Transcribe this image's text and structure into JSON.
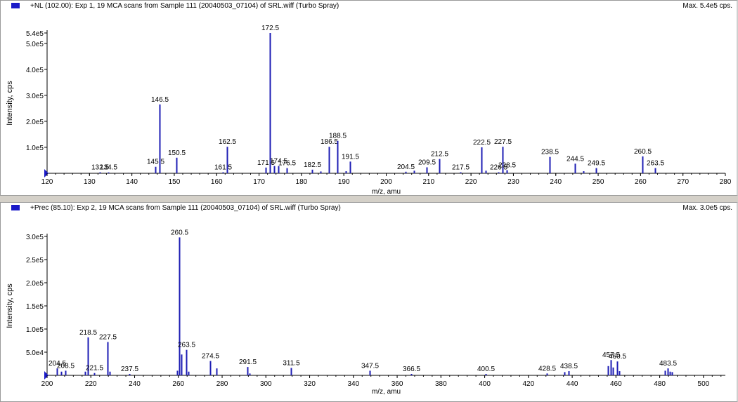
{
  "panels": [
    {
      "title": "+NL (102.00): Exp 1, 19 MCA scans from Sample 111 (20040503_07104) of SRL.wiff (Turbo Spray)",
      "max_label": "Max. 5.4e5 cps."
    },
    {
      "title": "+Prec (85.10): Exp 2, 19 MCA scans from Sample 111 (20040503_07104) of SRL.wiff (Turbo Spray)",
      "max_label": "Max. 3.0e5 cps."
    }
  ],
  "colors": {
    "bar": "#1e1eb4",
    "marker": "#1a1ac8",
    "axis": "#000000"
  },
  "chart_data": [
    {
      "type": "bar",
      "title": "+NL (102.00): Exp 1, 19 MCA scans from Sample 111 (20040503_07104) of SRL.wiff (Turbo Spray)",
      "xlabel": "m/z, amu",
      "ylabel": "Intensity, cps",
      "xlim": [
        120,
        280
      ],
      "ylim": [
        0,
        540000
      ],
      "xticks": [
        {
          "v": 120,
          "t": "120"
        },
        {
          "v": 130,
          "t": "130"
        },
        {
          "v": 140,
          "t": "140"
        },
        {
          "v": 150,
          "t": "150"
        },
        {
          "v": 160,
          "t": "160"
        },
        {
          "v": 170,
          "t": "170"
        },
        {
          "v": 180,
          "t": "180"
        },
        {
          "v": 190,
          "t": "190"
        },
        {
          "v": 200,
          "t": "200"
        },
        {
          "v": 210,
          "t": "210"
        },
        {
          "v": 220,
          "t": "220"
        },
        {
          "v": 230,
          "t": "230"
        },
        {
          "v": 240,
          "t": "240"
        },
        {
          "v": 250,
          "t": "250"
        },
        {
          "v": 260,
          "t": "260"
        },
        {
          "v": 270,
          "t": "270"
        },
        {
          "v": 280,
          "t": "280"
        }
      ],
      "yticks": [
        {
          "v": 100000,
          "t": "1.0e5"
        },
        {
          "v": 200000,
          "t": "2.0e5"
        },
        {
          "v": 300000,
          "t": "3.0e5"
        },
        {
          "v": 400000,
          "t": "4.0e5"
        },
        {
          "v": 500000,
          "t": "5.0e5"
        },
        {
          "v": 540000,
          "t": "5.4e5"
        }
      ],
      "peaks": [
        {
          "x": 132.5,
          "y": 4000,
          "label": "132.5"
        },
        {
          "x": 134.5,
          "y": 3500,
          "label": "134.5"
        },
        {
          "x": 145.5,
          "y": 25000,
          "label": "145.5"
        },
        {
          "x": 146.5,
          "y": 265000,
          "label": "146.5"
        },
        {
          "x": 150.5,
          "y": 60000,
          "label": "150.5"
        },
        {
          "x": 161.5,
          "y": 4000,
          "label": "161.5"
        },
        {
          "x": 162.5,
          "y": 102000,
          "label": "162.5"
        },
        {
          "x": 171.5,
          "y": 22000,
          "label": "171.5"
        },
        {
          "x": 172.5,
          "y": 540000,
          "label": "172.5"
        },
        {
          "x": 173.5,
          "y": 28000
        },
        {
          "x": 174.5,
          "y": 28000,
          "label": "174.5"
        },
        {
          "x": 176.5,
          "y": 20000,
          "label": "176.5"
        },
        {
          "x": 182.5,
          "y": 14000,
          "label": "182.5"
        },
        {
          "x": 184.5,
          "y": 7000
        },
        {
          "x": 186.5,
          "y": 102000,
          "label": "186.5"
        },
        {
          "x": 188.5,
          "y": 125000,
          "label": "188.5"
        },
        {
          "x": 190.5,
          "y": 8000
        },
        {
          "x": 191.5,
          "y": 45000,
          "label": "191.5"
        },
        {
          "x": 204.5,
          "y": 6000,
          "label": "204.5"
        },
        {
          "x": 206.5,
          "y": 10000
        },
        {
          "x": 209.5,
          "y": 23000,
          "label": "209.5"
        },
        {
          "x": 212.5,
          "y": 55000,
          "label": "212.5"
        },
        {
          "x": 217.5,
          "y": 4000,
          "label": "217.5"
        },
        {
          "x": 222.5,
          "y": 100000,
          "label": "222.5"
        },
        {
          "x": 223.5,
          "y": 10000
        },
        {
          "x": 226.5,
          "y": 4000,
          "label": "226.5"
        },
        {
          "x": 227.5,
          "y": 102000,
          "label": "227.5"
        },
        {
          "x": 228.5,
          "y": 12000,
          "label": "228.5"
        },
        {
          "x": 238.5,
          "y": 63000,
          "label": "238.5"
        },
        {
          "x": 244.5,
          "y": 37000,
          "label": "244.5"
        },
        {
          "x": 246.5,
          "y": 8000
        },
        {
          "x": 249.5,
          "y": 20000,
          "label": "249.5"
        },
        {
          "x": 260.5,
          "y": 65000,
          "label": "260.5"
        },
        {
          "x": 263.5,
          "y": 20000,
          "label": "263.5"
        }
      ]
    },
    {
      "type": "bar",
      "title": "+Prec (85.10): Exp 2, 19 MCA scans from Sample 111 (20040503_07104) of SRL.wiff (Turbo Spray)",
      "xlabel": "m/z, amu",
      "ylabel": "Intensity, cps",
      "xlim": [
        200,
        510
      ],
      "ylim": [
        0,
        300000
      ],
      "xticks": [
        {
          "v": 200,
          "t": "200"
        },
        {
          "v": 220,
          "t": "220"
        },
        {
          "v": 240,
          "t": "240"
        },
        {
          "v": 260,
          "t": "260"
        },
        {
          "v": 280,
          "t": "280"
        },
        {
          "v": 300,
          "t": "300"
        },
        {
          "v": 320,
          "t": "320"
        },
        {
          "v": 340,
          "t": "340"
        },
        {
          "v": 360,
          "t": "360"
        },
        {
          "v": 380,
          "t": "380"
        },
        {
          "v": 400,
          "t": "400"
        },
        {
          "v": 420,
          "t": "420"
        },
        {
          "v": 440,
          "t": "440"
        },
        {
          "v": 460,
          "t": "460"
        },
        {
          "v": 480,
          "t": "480"
        },
        {
          "v": 500,
          "t": "500"
        }
      ],
      "yticks": [
        {
          "v": 50000,
          "t": "5.0e4"
        },
        {
          "v": 100000,
          "t": "1.0e5"
        },
        {
          "v": 150000,
          "t": "1.5e5"
        },
        {
          "v": 200000,
          "t": "2.0e5"
        },
        {
          "v": 250000,
          "t": "2.5e5"
        },
        {
          "v": 300000,
          "t": "3.0e5"
        }
      ],
      "peaks": [
        {
          "x": 204.5,
          "y": 15000,
          "label": "204.5"
        },
        {
          "x": 206.5,
          "y": 8000
        },
        {
          "x": 208.5,
          "y": 10000,
          "label": "208.5"
        },
        {
          "x": 217.5,
          "y": 8000
        },
        {
          "x": 218.5,
          "y": 82000,
          "label": "218.5"
        },
        {
          "x": 221.5,
          "y": 5000,
          "label": "221.5"
        },
        {
          "x": 227.5,
          "y": 72000,
          "label": "227.5"
        },
        {
          "x": 228.5,
          "y": 8000
        },
        {
          "x": 237.5,
          "y": 3000,
          "label": "237.5"
        },
        {
          "x": 259.5,
          "y": 10000
        },
        {
          "x": 260.5,
          "y": 298000,
          "label": "260.5"
        },
        {
          "x": 261.5,
          "y": 45000
        },
        {
          "x": 263.5,
          "y": 55000,
          "label": "263.5"
        },
        {
          "x": 264.5,
          "y": 8000
        },
        {
          "x": 274.5,
          "y": 31000,
          "label": "274.5"
        },
        {
          "x": 277.5,
          "y": 15000
        },
        {
          "x": 291.5,
          "y": 18000,
          "label": "291.5"
        },
        {
          "x": 292.5,
          "y": 4000
        },
        {
          "x": 311.5,
          "y": 16000,
          "label": "311.5"
        },
        {
          "x": 347.5,
          "y": 10000,
          "label": "347.5"
        },
        {
          "x": 366.5,
          "y": 3000,
          "label": "366.5"
        },
        {
          "x": 400.5,
          "y": 3000,
          "label": "400.5"
        },
        {
          "x": 428.5,
          "y": 4000,
          "label": "428.5"
        },
        {
          "x": 436.5,
          "y": 7000
        },
        {
          "x": 438.5,
          "y": 9000,
          "label": "438.5"
        },
        {
          "x": 456.5,
          "y": 20000
        },
        {
          "x": 457.5,
          "y": 33000,
          "label": "457.5"
        },
        {
          "x": 458.5,
          "y": 17000
        },
        {
          "x": 460.5,
          "y": 30000,
          "label": "460.5"
        },
        {
          "x": 461.5,
          "y": 9000
        },
        {
          "x": 482.5,
          "y": 10000
        },
        {
          "x": 483.5,
          "y": 15000,
          "label": "483.5"
        },
        {
          "x": 484.5,
          "y": 8000
        },
        {
          "x": 485.5,
          "y": 7000
        }
      ]
    }
  ]
}
